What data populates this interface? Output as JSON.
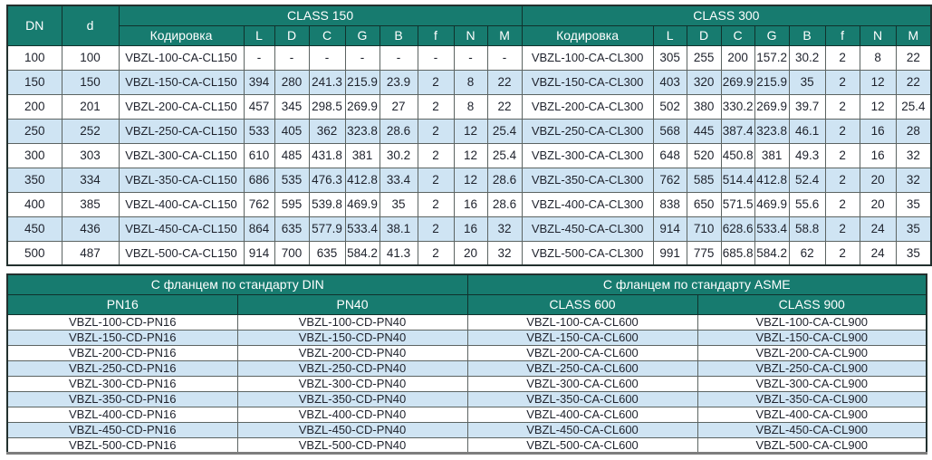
{
  "colors": {
    "header_bg": "#177b6f",
    "alt_row_bg": "#cfe4f3",
    "row_bg": "#ffffff",
    "header_text": "#ffffff",
    "cell_text": "#1e222c"
  },
  "table1": {
    "col_dn": "DN",
    "col_d": "d",
    "group_class150": "CLASS 150",
    "group_class300": "CLASS 300",
    "sub_headers": [
      "Кодировка",
      "L",
      "D",
      "C",
      "G",
      "B",
      "f",
      "N",
      "M"
    ],
    "rows": [
      {
        "dn": "100",
        "d": "100",
        "c150": [
          "VBZL-100-CA-CL150",
          "-",
          "-",
          "-",
          "-",
          "-",
          "-",
          "-",
          "-"
        ],
        "c300": [
          "VBZL-100-CA-CL300",
          "305",
          "255",
          "200",
          "157.2",
          "30.2",
          "2",
          "8",
          "22"
        ]
      },
      {
        "dn": "150",
        "d": "150",
        "c150": [
          "VBZL-150-CA-CL150",
          "394",
          "280",
          "241.3",
          "215.9",
          "23.9",
          "2",
          "8",
          "22"
        ],
        "c300": [
          "VBZL-150-CA-CL300",
          "403",
          "320",
          "269.9",
          "215.9",
          "35",
          "2",
          "12",
          "22"
        ]
      },
      {
        "dn": "200",
        "d": "201",
        "c150": [
          "VBZL-200-CA-CL150",
          "457",
          "345",
          "298.5",
          "269.9",
          "27",
          "2",
          "8",
          "22"
        ],
        "c300": [
          "VBZL-200-CA-CL300",
          "502",
          "380",
          "330.2",
          "269.9",
          "39.7",
          "2",
          "12",
          "25.4"
        ]
      },
      {
        "dn": "250",
        "d": "252",
        "c150": [
          "VBZL-250-CA-CL150",
          "533",
          "405",
          "362",
          "323.8",
          "28.6",
          "2",
          "12",
          "25.4"
        ],
        "c300": [
          "VBZL-250-CA-CL300",
          "568",
          "445",
          "387.4",
          "323.8",
          "46.1",
          "2",
          "16",
          "28"
        ]
      },
      {
        "dn": "300",
        "d": "303",
        "c150": [
          "VBZL-300-CA-CL150",
          "610",
          "485",
          "431.8",
          "381",
          "30.2",
          "2",
          "12",
          "25.4"
        ],
        "c300": [
          "VBZL-300-CA-CL300",
          "648",
          "520",
          "450.8",
          "381",
          "49.3",
          "2",
          "16",
          "32"
        ]
      },
      {
        "dn": "350",
        "d": "334",
        "c150": [
          "VBZL-350-CA-CL150",
          "686",
          "535",
          "476.3",
          "412.8",
          "33.4",
          "2",
          "12",
          "28.6"
        ],
        "c300": [
          "VBZL-350-CA-CL300",
          "762",
          "585",
          "514.4",
          "412.8",
          "52.4",
          "2",
          "20",
          "32"
        ]
      },
      {
        "dn": "400",
        "d": "385",
        "c150": [
          "VBZL-400-CA-CL150",
          "762",
          "595",
          "539.8",
          "469.9",
          "35",
          "2",
          "16",
          "28.6"
        ],
        "c300": [
          "VBZL-400-CA-CL300",
          "838",
          "650",
          "571.5",
          "469.9",
          "55.6",
          "2",
          "20",
          "35"
        ]
      },
      {
        "dn": "450",
        "d": "436",
        "c150": [
          "VBZL-450-CA-CL150",
          "864",
          "635",
          "577.9",
          "533.4",
          "38.1",
          "2",
          "16",
          "32"
        ],
        "c300": [
          "VBZL-450-CA-CL300",
          "914",
          "710",
          "628.6",
          "533.4",
          "58.8",
          "2",
          "24",
          "35"
        ]
      },
      {
        "dn": "500",
        "d": "487",
        "c150": [
          "VBZL-500-CA-CL150",
          "914",
          "700",
          "635",
          "584.2",
          "41.3",
          "2",
          "20",
          "32"
        ],
        "c300": [
          "VBZL-500-CA-CL300",
          "991",
          "775",
          "685.8",
          "584.2",
          "62",
          "2",
          "24",
          "35"
        ]
      }
    ]
  },
  "table2": {
    "group_din": "С фланцем по стандарту DIN",
    "group_asme": "С фланцем по стандарту ASME",
    "col_headers": [
      "PN16",
      "PN40",
      "CLASS 600",
      "CLASS 900"
    ],
    "rows": [
      [
        "VBZL-100-CD-PN16",
        "VBZL-100-CD-PN40",
        "VBZL-100-CA-CL600",
        "VBZL-100-CA-CL900"
      ],
      [
        "VBZL-150-CD-PN16",
        "VBZL-150-CD-PN40",
        "VBZL-150-CA-CL600",
        "VBZL-150-CA-CL900"
      ],
      [
        "VBZL-200-CD-PN16",
        "VBZL-200-CD-PN40",
        "VBZL-200-CA-CL600",
        "VBZL-200-CA-CL900"
      ],
      [
        "VBZL-250-CD-PN16",
        "VBZL-250-CD-PN40",
        "VBZL-250-CA-CL600",
        "VBZL-250-CA-CL900"
      ],
      [
        "VBZL-300-CD-PN16",
        "VBZL-300-CD-PN40",
        "VBZL-300-CA-CL600",
        "VBZL-300-CA-CL900"
      ],
      [
        "VBZL-350-CD-PN16",
        "VBZL-350-CD-PN40",
        "VBZL-350-CA-CL600",
        "VBZL-350-CA-CL900"
      ],
      [
        "VBZL-400-CD-PN16",
        "VBZL-400-CD-PN40",
        "VBZL-400-CA-CL600",
        "VBZL-400-CA-CL900"
      ],
      [
        "VBZL-450-CD-PN16",
        "VBZL-450-CD-PN40",
        "VBZL-450-CA-CL600",
        "VBZL-450-CA-CL900"
      ],
      [
        "VBZL-500-CD-PN16",
        "VBZL-500-CD-PN40",
        "VBZL-500-CA-CL600",
        "VBZL-500-CA-CL900"
      ]
    ]
  }
}
